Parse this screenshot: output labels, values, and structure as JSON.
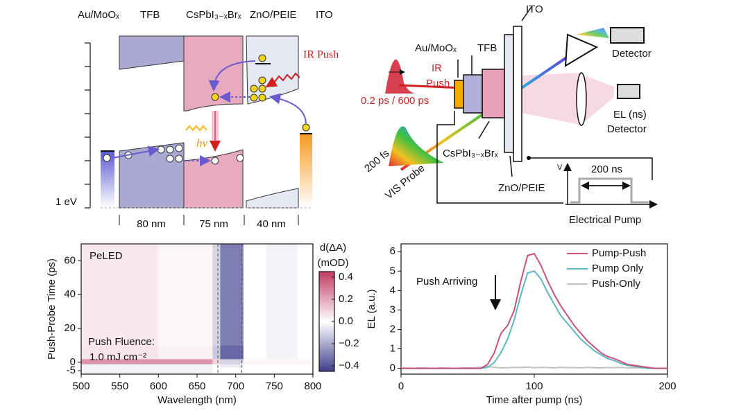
{
  "band_diagram": {
    "layers": [
      "Au/MoOₓ",
      "TFB",
      "CsPbI₃₋ₓBrₓ",
      "ZnO/PEIE",
      "ITO"
    ],
    "ir_push": "IR Push",
    "emission": "hν",
    "scale": "1 eV",
    "thicknesses": [
      "80 nm",
      "75 nm",
      "40 nm"
    ]
  },
  "setup": {
    "ito": "ITO",
    "au": "Au/MoOₓ",
    "tfb": "TFB",
    "ir": "IR",
    "push": "Push",
    "pulse": "0.2 ps / 600 ps",
    "detector": "Detector",
    "el": "EL (ns)",
    "el_detector": "Detector",
    "probe_duration": "200 fs",
    "probe": "VIS Probe",
    "perovskite": "CsPbI₃₋ₓBrₓ",
    "zno": "ZnO/PEIE",
    "voltage": "V",
    "pump_duration": "200 ns",
    "pump": "Electrical Pump"
  },
  "chart_data": [
    {
      "type": "heatmap",
      "x_label": "Wavelength (nm)",
      "y_label": "Push-Probe Time (ps)",
      "annotations": [
        "PeLED",
        "Push Fluence:",
        "1.0 mJ cm⁻²"
      ],
      "colorbar_label": [
        "d(ΔA)",
        "(mOD)"
      ],
      "xbins": [
        500,
        510,
        520,
        530,
        540,
        550,
        560,
        570,
        580,
        590,
        600,
        610,
        620,
        630,
        640,
        650,
        660,
        670,
        680,
        690,
        700,
        710,
        720,
        730,
        740,
        750,
        760,
        770,
        780,
        790,
        800
      ],
      "ybins": [
        -7,
        -3,
        -1,
        2,
        10,
        25,
        40,
        55,
        70
      ],
      "z": [
        [
          -0.03,
          -0.03,
          -0.03,
          -0.03,
          -0.03,
          -0.03,
          -0.03,
          -0.03,
          -0.03,
          -0.03,
          -0.03,
          -0.03,
          -0.03,
          -0.03,
          -0.03,
          -0.03,
          -0.03,
          0,
          0,
          0,
          0,
          0,
          0,
          0,
          0,
          0,
          0,
          0,
          0,
          0
        ],
        [
          -0.03,
          -0.03,
          -0.03,
          -0.03,
          -0.03,
          -0.03,
          -0.03,
          -0.03,
          -0.03,
          -0.03,
          -0.03,
          -0.03,
          -0.03,
          -0.03,
          -0.03,
          -0.03,
          -0.03,
          0,
          -0.05,
          -0.05,
          -0.05,
          0,
          0,
          0,
          0,
          0,
          0,
          0,
          0,
          0
        ],
        [
          0.25,
          0.25,
          0.25,
          0.25,
          0.25,
          0.25,
          0.25,
          0.25,
          0.25,
          0.25,
          0.25,
          0.25,
          0.25,
          0.25,
          0.25,
          0.25,
          0.25,
          0.1,
          -0.1,
          -0.1,
          -0.1,
          0.02,
          0.02,
          0.02,
          0.02,
          0.02,
          0.02,
          0.02,
          0.02,
          0.02
        ],
        [
          0.06,
          0.06,
          0.06,
          0.06,
          0.06,
          0.06,
          0.06,
          0.06,
          0.06,
          0.06,
          0.03,
          0.03,
          0.03,
          0.03,
          0.03,
          0.03,
          0.03,
          -0.12,
          -0.35,
          -0.35,
          -0.35,
          0,
          0,
          0,
          -0.03,
          -0.03,
          -0.03,
          -0.03,
          0,
          0
        ],
        [
          0.05,
          0.05,
          0.05,
          0.05,
          0.05,
          0.05,
          0.05,
          0.05,
          0.05,
          0.05,
          0.02,
          0.02,
          0.02,
          0.02,
          0.02,
          0.02,
          0.02,
          -0.1,
          -0.3,
          -0.3,
          -0.3,
          0,
          0,
          0,
          -0.03,
          -0.03,
          -0.03,
          -0.03,
          0,
          0
        ],
        [
          0.05,
          0.05,
          0.05,
          0.05,
          0.05,
          0.05,
          0.05,
          0.05,
          0.05,
          0.05,
          0.02,
          0.02,
          0.02,
          0.02,
          0.02,
          0.02,
          0.02,
          -0.1,
          -0.3,
          -0.3,
          -0.3,
          0,
          0,
          0,
          -0.03,
          -0.03,
          -0.03,
          -0.03,
          0,
          0
        ],
        [
          0.05,
          0.05,
          0.05,
          0.05,
          0.05,
          0.05,
          0.05,
          0.05,
          0.05,
          0.05,
          0.02,
          0.02,
          0.02,
          0.02,
          0.02,
          0.02,
          0.02,
          -0.1,
          -0.3,
          -0.3,
          -0.3,
          0,
          0,
          0,
          -0.03,
          -0.03,
          -0.03,
          -0.03,
          0,
          0
        ],
        [
          0.05,
          0.05,
          0.05,
          0.05,
          0.05,
          0.05,
          0.05,
          0.05,
          0.05,
          0.05,
          0.02,
          0.02,
          0.02,
          0.02,
          0.02,
          0.02,
          0.02,
          -0.1,
          -0.3,
          -0.3,
          -0.3,
          0,
          0,
          0,
          -0.03,
          -0.03,
          -0.03,
          -0.03,
          0,
          0
        ]
      ],
      "xlim": [
        500,
        800
      ],
      "xticks": [
        500,
        550,
        600,
        650,
        700,
        750,
        800
      ],
      "ylim": [
        -7,
        70
      ],
      "yticks": [
        -5,
        0,
        20,
        40,
        60
      ],
      "zlim": [
        -0.45,
        0.45
      ],
      "zticks": [
        0.4,
        0.2,
        {
          "value": 0,
          "label": "0.0"
        },
        {
          "value": -0.2,
          "label": "−0.2"
        },
        {
          "value": -0.4,
          "label": "−0.4"
        }
      ],
      "colormap": [
        "#3d3d8c",
        "#ffffff",
        "#c23c64"
      ],
      "vlines": [
        677,
        708
      ]
    },
    {
      "type": "line",
      "x_label": "Time after pump (ns)",
      "y_label": "EL (a.u.)",
      "annotation": "Push Arriving",
      "x": [
        0,
        5,
        10,
        15,
        20,
        25,
        30,
        35,
        40,
        45,
        50,
        55,
        60,
        65,
        70,
        75,
        80,
        85,
        90,
        95,
        100,
        105,
        110,
        115,
        120,
        125,
        130,
        135,
        140,
        145,
        150,
        155,
        160,
        165,
        170,
        175,
        180,
        185,
        190,
        195,
        200
      ],
      "series": [
        {
          "name": "Pump-Push",
          "color": "#c8507a",
          "values": [
            0,
            0,
            0,
            0,
            0,
            0,
            0,
            0,
            0,
            0,
            0,
            0,
            0,
            0.2,
            0.8,
            1.8,
            2.2,
            3.0,
            4.5,
            5.8,
            5.9,
            5.3,
            4.5,
            3.8,
            3.2,
            2.7,
            2.2,
            1.8,
            1.4,
            1.1,
            0.8,
            0.6,
            0.5,
            0.35,
            0.2,
            0.15,
            0.1,
            0.05,
            0,
            0,
            0
          ]
        },
        {
          "name": "Pump Only",
          "color": "#5ab8c0",
          "values": [
            0,
            0,
            0,
            0,
            0,
            0,
            0,
            0,
            0,
            0,
            0,
            0,
            0,
            0.05,
            0.3,
            0.8,
            1.5,
            2.5,
            3.8,
            4.9,
            5.0,
            4.6,
            3.9,
            3.3,
            2.7,
            2.3,
            1.9,
            1.5,
            1.2,
            0.9,
            0.7,
            0.5,
            0.4,
            0.25,
            0.15,
            0.1,
            0.05,
            0,
            0,
            0,
            0
          ]
        },
        {
          "name": "Push-Only",
          "color": "#c0c0c0",
          "values": [
            0,
            0.01,
            0,
            0.02,
            0.01,
            0,
            0.02,
            0.01,
            0,
            0.02,
            0.03,
            0.02,
            0.05,
            0.08,
            0.05,
            0.02,
            0.03,
            0.05,
            0.04,
            0.06,
            0.03,
            0.05,
            0.04,
            0.02,
            0.05,
            0.03,
            0.04,
            0.02,
            0.05,
            0.03,
            0.02,
            0.04,
            0.03,
            0.05,
            0.02,
            0.03,
            0.01,
            0.02,
            0.01,
            0,
            0.01
          ]
        }
      ],
      "xlim": [
        0,
        200
      ],
      "xticks": [
        0,
        100,
        200
      ],
      "ylim": [
        -0.3,
        6.4
      ],
      "yticks": [
        0,
        1,
        2,
        3,
        4,
        5,
        6
      ],
      "legend": "upper right"
    }
  ]
}
